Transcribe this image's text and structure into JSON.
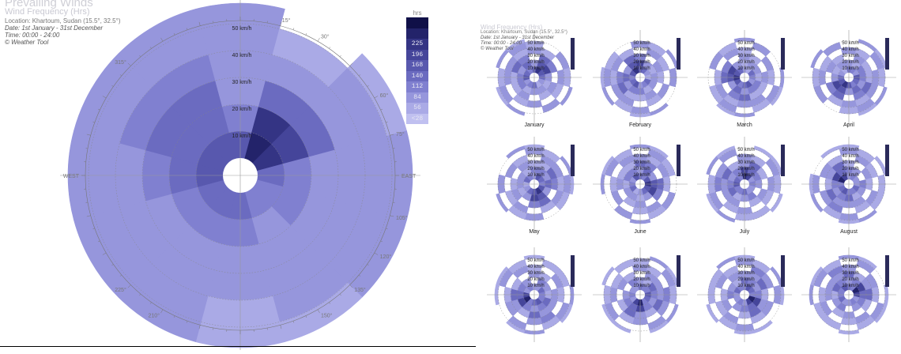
{
  "chart_data": [
    {
      "type": "polar-heatmap",
      "caption": {
        "title": "Prevailing Winds",
        "subtitle": "Wind Frequency (Hrs)",
        "location": "Location: Khartoum, Sudan (15.5°, 32.5°)",
        "date": "Date: 1st January - 31st December",
        "time": "Time: 00:00 - 24:00",
        "credit": "© Weather Tool"
      },
      "legend": {
        "unit": "hrs",
        "labels": [
          "",
          "",
          "225",
          "196",
          "168",
          "140",
          "112",
          "84",
          "56",
          "<28"
        ],
        "colors": [
          "#101048",
          "#23236a",
          "#343484",
          "#45459a",
          "#5858ae",
          "#6b6bc0",
          "#8080d0",
          "#9696dc",
          "#aaaae6",
          "#c0c0f0"
        ]
      },
      "ring_labels": [
        "10 km/h",
        "20 km/h",
        "30 km/h",
        "40 km/h",
        "50 km/h"
      ],
      "angle_labels": [
        "15°",
        "30°",
        "60°",
        "75°",
        "EAST",
        "105°",
        "120°",
        "135°",
        "150°",
        "210°",
        "225°",
        "WEST",
        "315°"
      ],
      "sector_width_deg": 30,
      "directions_deg": [
        0,
        30,
        60,
        90,
        120,
        150,
        180,
        210,
        240,
        270,
        300,
        330
      ],
      "speed_bands": [
        "0-10",
        "10-20",
        "20-30",
        "30-40",
        "40-50",
        "50+"
      ],
      "hours": [
        [
          140,
          84,
          56,
          56,
          56,
          56
        ],
        [
          225,
          196,
          112,
          56,
          28,
          0
        ],
        [
          196,
          168,
          112,
          56,
          56,
          28
        ],
        [
          112,
          84,
          56,
          56,
          56,
          56
        ],
        [
          84,
          84,
          56,
          56,
          56,
          56
        ],
        [
          84,
          56,
          56,
          56,
          56,
          28
        ],
        [
          112,
          84,
          56,
          56,
          28,
          28
        ],
        [
          112,
          84,
          56,
          56,
          56,
          56
        ],
        [
          112,
          84,
          56,
          56,
          56,
          56
        ],
        [
          140,
          112,
          84,
          56,
          56,
          56
        ],
        [
          140,
          112,
          112,
          84,
          56,
          56
        ],
        [
          140,
          112,
          112,
          84,
          56,
          56
        ]
      ]
    },
    {
      "type": "small-multiples",
      "caption": {
        "title": "Prevailing Winds",
        "subtitle": "Wind Frequency (Hrs)",
        "location": "Location: Khartoum, Sudan (15.5°, 32.5°)",
        "date": "Date: 1st January - 31st December",
        "time": "Time: 00:00 - 24:00",
        "credit": "© Weather Tool"
      },
      "ring_labels": [
        "10 km/h",
        "20 km/h",
        "30 km/h",
        "40 km/h",
        "50 km/h"
      ],
      "months": [
        "January",
        "February",
        "March",
        "April",
        "May",
        "June",
        "July",
        "August",
        "",
        "",
        "",
        ""
      ]
    }
  ]
}
